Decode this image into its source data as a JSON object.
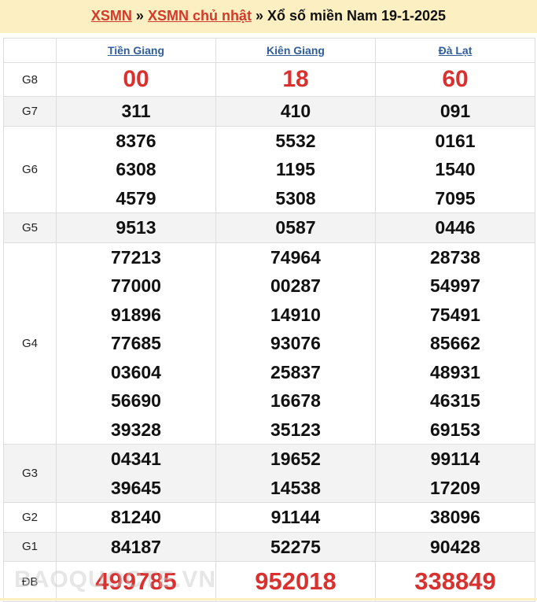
{
  "header": {
    "link1": "XSMN",
    "sep1": " » ",
    "link2": "XSMN chủ nhật",
    "sep2": " » ",
    "title": "Xổ số miền Nam 19-1-2025"
  },
  "provinces": [
    "Tiền Giang",
    "Kiên Giang",
    "Đà Lạt"
  ],
  "rows": [
    {
      "label": "G8",
      "cols": [
        [
          "00"
        ],
        [
          "18"
        ],
        [
          "60"
        ]
      ]
    },
    {
      "label": "G7",
      "cols": [
        [
          "311"
        ],
        [
          "410"
        ],
        [
          "091"
        ]
      ]
    },
    {
      "label": "G6",
      "cols": [
        [
          "8376",
          "6308",
          "4579"
        ],
        [
          "5532",
          "1195",
          "5308"
        ],
        [
          "0161",
          "1540",
          "7095"
        ]
      ]
    },
    {
      "label": "G5",
      "cols": [
        [
          "9513"
        ],
        [
          "0587"
        ],
        [
          "0446"
        ]
      ]
    },
    {
      "label": "G4",
      "cols": [
        [
          "77213",
          "77000",
          "91896",
          "77685",
          "03604",
          "56690",
          "39328"
        ],
        [
          "74964",
          "00287",
          "14910",
          "93076",
          "25837",
          "16678",
          "35123"
        ],
        [
          "28738",
          "54997",
          "75491",
          "85662",
          "48931",
          "46315",
          "69153"
        ]
      ]
    },
    {
      "label": "G3",
      "cols": [
        [
          "04341",
          "39645"
        ],
        [
          "19652",
          "14538"
        ],
        [
          "99114",
          "17209"
        ]
      ]
    },
    {
      "label": "G2",
      "cols": [
        [
          "81240"
        ],
        [
          "91144"
        ],
        [
          "38096"
        ]
      ]
    },
    {
      "label": "G1",
      "cols": [
        [
          "84187"
        ],
        [
          "52275"
        ],
        [
          "90428"
        ]
      ]
    },
    {
      "label": "ĐB",
      "cols": [
        [
          "499785"
        ],
        [
          "952018"
        ],
        [
          "338849"
        ]
      ]
    }
  ],
  "watermark": "BAOQUOCTE.VN",
  "colors": {
    "accent": "#d93030",
    "header_bg": "#fcefc2",
    "link": "#2f5d9c"
  }
}
